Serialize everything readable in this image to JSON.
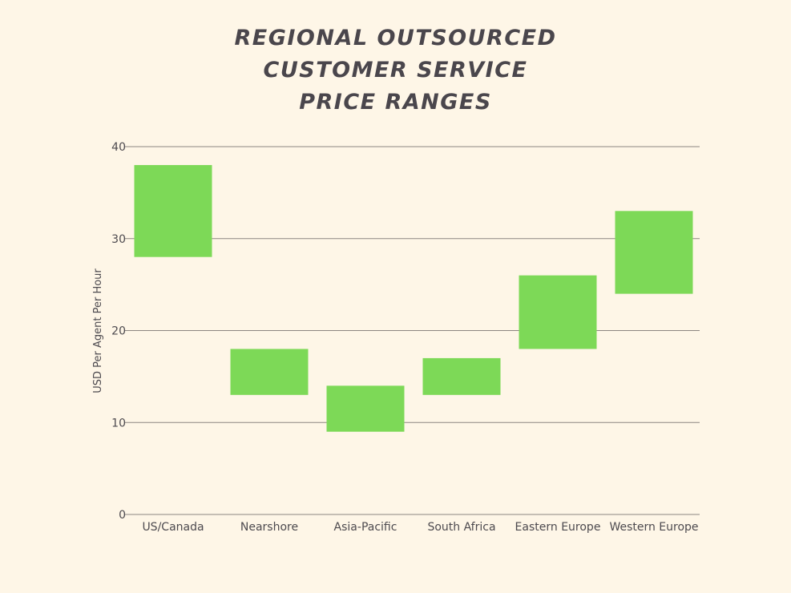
{
  "chart_data": {
    "type": "bar",
    "subtype": "floating-range",
    "title_lines": [
      "REGIONAL OUTSOURCED",
      "CUSTOMER SERVICE",
      "PRICE RANGES"
    ],
    "xlabel": "",
    "ylabel": "USD Per Agent Per Hour",
    "ylim": [
      0,
      40
    ],
    "yticks": [
      0,
      10,
      20,
      30,
      40
    ],
    "grid": true,
    "categories": [
      "US/Canada",
      "Nearshore",
      "Asia-Pacific",
      "South Africa",
      "Eastern Europe",
      "Western Europe"
    ],
    "series": [
      {
        "name": "Price range",
        "low": [
          28,
          13,
          9,
          13,
          18,
          24
        ],
        "high": [
          38,
          18,
          14,
          17,
          26,
          33
        ]
      }
    ],
    "bar_color": "#7dd957"
  }
}
